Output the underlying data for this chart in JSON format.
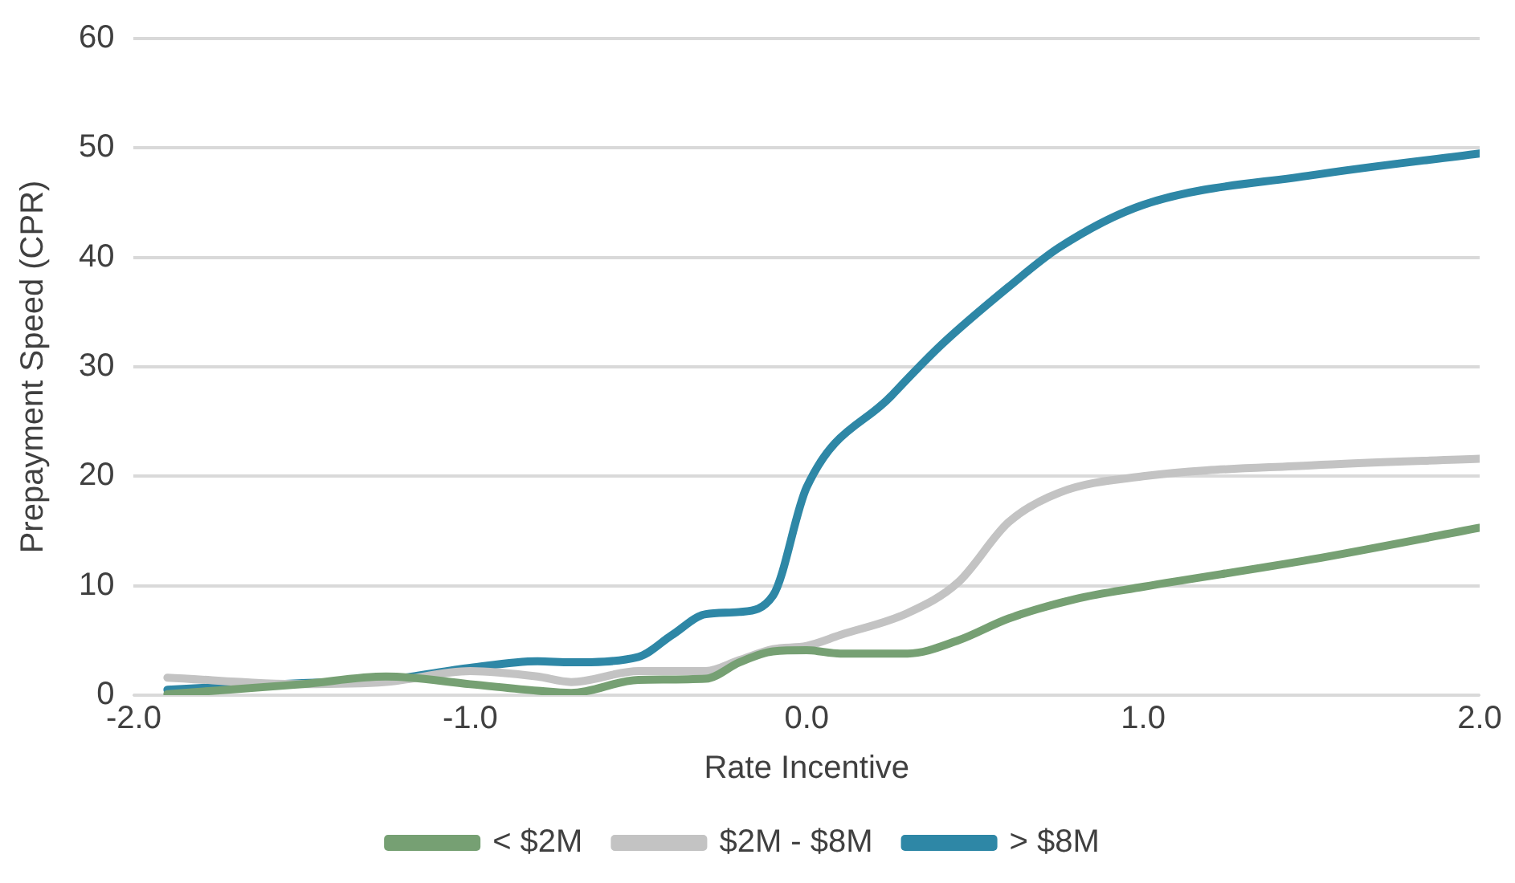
{
  "chart_data": {
    "type": "line",
    "xlabel": "Rate Incentive",
    "ylabel": "Prepayment Speed (CPR)",
    "xlim": [
      -2.0,
      2.0
    ],
    "xticks": [
      {
        "value": -2,
        "label": "-2.0"
      },
      {
        "value": -1,
        "label": "-1.0"
      },
      {
        "value": 0,
        "label": "0.0"
      },
      {
        "value": 1,
        "label": "1.0"
      },
      {
        "value": 2,
        "label": "2.0"
      }
    ],
    "ylim": [
      0,
      60
    ],
    "yticks": [
      0,
      10,
      20,
      30,
      40,
      50,
      60
    ],
    "grid": "y",
    "legend": "bottom",
    "marker": "none",
    "line_style": "solid",
    "series": [
      {
        "name": "< $2M",
        "color": "#76a073",
        "x": [
          -1.9,
          -1.5,
          -1.25,
          -1.0,
          -0.8,
          -0.7,
          -0.5,
          -0.3,
          -0.2,
          -0.1,
          0.0,
          0.1,
          0.3,
          0.45,
          0.6,
          0.8,
          1.0,
          1.5,
          2.0
        ],
        "values": [
          0.1,
          1.0,
          1.7,
          1.0,
          0.4,
          0.2,
          1.4,
          1.5,
          3.0,
          4.0,
          4.1,
          3.8,
          3.8,
          5.0,
          7.0,
          8.8,
          9.9,
          12.4,
          15.3
        ]
      },
      {
        "name": "$2M - $8M",
        "color": "#c3c3c3",
        "x": [
          -1.9,
          -1.5,
          -1.25,
          -1.0,
          -0.8,
          -0.7,
          -0.5,
          -0.3,
          -0.2,
          -0.1,
          0.0,
          0.1,
          0.3,
          0.45,
          0.6,
          0.75,
          1.0,
          1.5,
          2.0
        ],
        "values": [
          1.6,
          1.0,
          1.2,
          2.2,
          1.7,
          1.2,
          2.2,
          2.2,
          3.2,
          4.2,
          4.5,
          5.5,
          7.5,
          10.3,
          15.8,
          18.5,
          20.0,
          21.0,
          21.6
        ]
      },
      {
        "name": "> $8M",
        "color": "#2e87a6",
        "x": [
          -1.9,
          -1.5,
          -1.25,
          -1.0,
          -0.8,
          -0.7,
          -0.5,
          -0.4,
          -0.3,
          -0.2,
          -0.1,
          0.0,
          0.25,
          0.4,
          0.6,
          0.75,
          1.0,
          1.5,
          2.0
        ],
        "values": [
          0.5,
          1.1,
          1.4,
          2.5,
          3.1,
          3.0,
          3.5,
          5.5,
          7.4,
          7.6,
          9.1,
          19.0,
          27.3,
          32.0,
          37.3,
          40.9,
          44.8,
          47.5,
          49.5
        ]
      }
    ]
  }
}
